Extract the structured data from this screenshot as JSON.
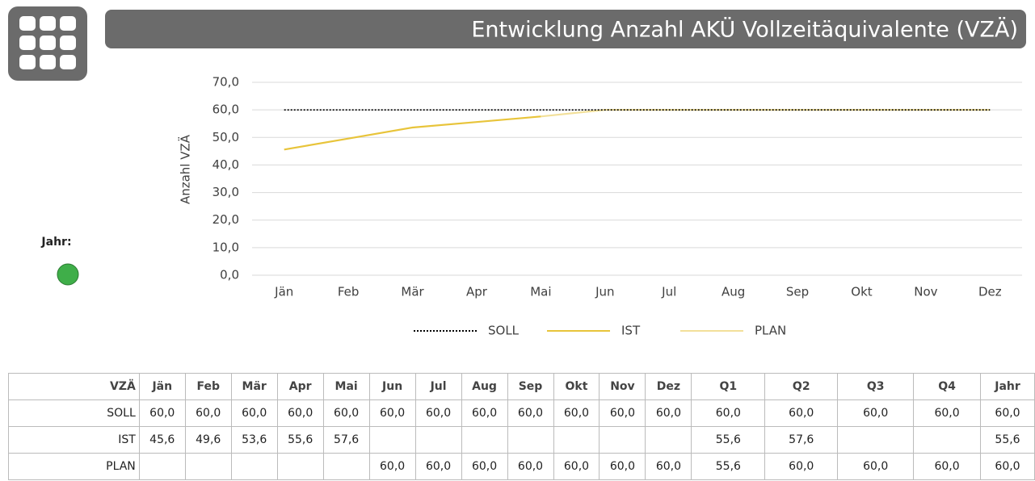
{
  "header": {
    "title": "Entwicklung Anzahl AKÜ Vollzeitäquivalente (VZÄ)"
  },
  "status": {
    "label": "Jahr:",
    "color": "#3fae49"
  },
  "chart_data": {
    "type": "line",
    "y_label": "Anzahl VZÄ",
    "categories": [
      "Jän",
      "Feb",
      "Mär",
      "Apr",
      "Mai",
      "Jun",
      "Jul",
      "Aug",
      "Sep",
      "Okt",
      "Nov",
      "Dez"
    ],
    "series": [
      {
        "name": "SOLL",
        "color": "#000000",
        "dash": "2 2",
        "values": [
          60,
          60,
          60,
          60,
          60,
          60,
          60,
          60,
          60,
          60,
          60,
          60
        ]
      },
      {
        "name": "IST",
        "color": "#e8c43a",
        "values": [
          45.6,
          49.6,
          53.6,
          55.6,
          57.6,
          null,
          null,
          null,
          null,
          null,
          null,
          null
        ]
      },
      {
        "name": "PLAN",
        "color": "#f2e09a",
        "values": [
          null,
          null,
          null,
          null,
          57.6,
          60,
          60,
          60,
          60,
          60,
          60,
          60
        ]
      }
    ],
    "ylim": [
      0,
      70
    ],
    "yticks": [
      {
        "value": 0,
        "label": "0,0"
      },
      {
        "value": 10,
        "label": "10,0"
      },
      {
        "value": 20,
        "label": "20,0"
      },
      {
        "value": 30,
        "label": "30,0"
      },
      {
        "value": 40,
        "label": "40,0"
      },
      {
        "value": 50,
        "label": "50,0"
      },
      {
        "value": 60,
        "label": "60,0"
      },
      {
        "value": 70,
        "label": "70,0"
      }
    ],
    "grid": true,
    "legend": "bottom"
  },
  "table": {
    "header": [
      "VZÄ",
      "Jän",
      "Feb",
      "Mär",
      "Apr",
      "Mai",
      "Jun",
      "Jul",
      "Aug",
      "Sep",
      "Okt",
      "Nov",
      "Dez",
      "Q1",
      "Q2",
      "Q3",
      "Q4",
      "Jahr"
    ],
    "rows": [
      [
        "SOLL",
        "60,0",
        "60,0",
        "60,0",
        "60,0",
        "60,0",
        "60,0",
        "60,0",
        "60,0",
        "60,0",
        "60,0",
        "60,0",
        "60,0",
        "60,0",
        "60,0",
        "60,0",
        "60,0",
        "60,0"
      ],
      [
        "IST",
        "45,6",
        "49,6",
        "53,6",
        "55,6",
        "57,6",
        null,
        null,
        null,
        null,
        null,
        null,
        null,
        "55,6",
        "57,6",
        null,
        null,
        "55,6"
      ],
      [
        "PLAN",
        null,
        null,
        null,
        null,
        null,
        "60,0",
        "60,0",
        "60,0",
        "60,0",
        "60,0",
        "60,0",
        "60,0",
        "55,6",
        "60,0",
        "60,0",
        "60,0",
        "60,0"
      ]
    ]
  }
}
